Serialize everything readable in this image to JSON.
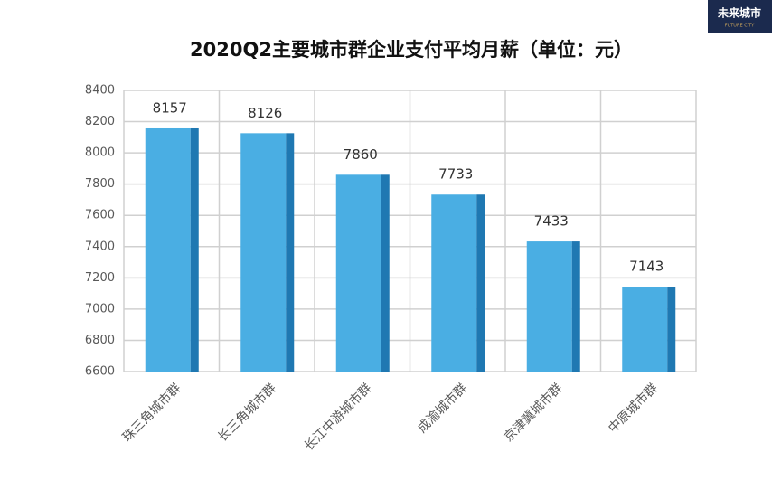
{
  "logo": {
    "name": "未来城市",
    "subtitle": "FUTURE CITY"
  },
  "chart_data": {
    "type": "bar",
    "title": "2020Q2主要城市群企业支付平均月薪（单位：元）",
    "categories": [
      "珠三角城市群",
      "长三角城市群",
      "长江中游城市群",
      "成渝城市群",
      "京津冀城市群",
      "中原城市群"
    ],
    "values": [
      8157,
      8126,
      7860,
      7733,
      7433,
      7143
    ],
    "color": "#4aaee3",
    "side_color": "#1f78b2",
    "ylim": [
      6600,
      8400
    ],
    "yticks": [
      6600,
      6800,
      7000,
      7200,
      7400,
      7600,
      7800,
      8000,
      8200,
      8400
    ],
    "grid": true
  }
}
